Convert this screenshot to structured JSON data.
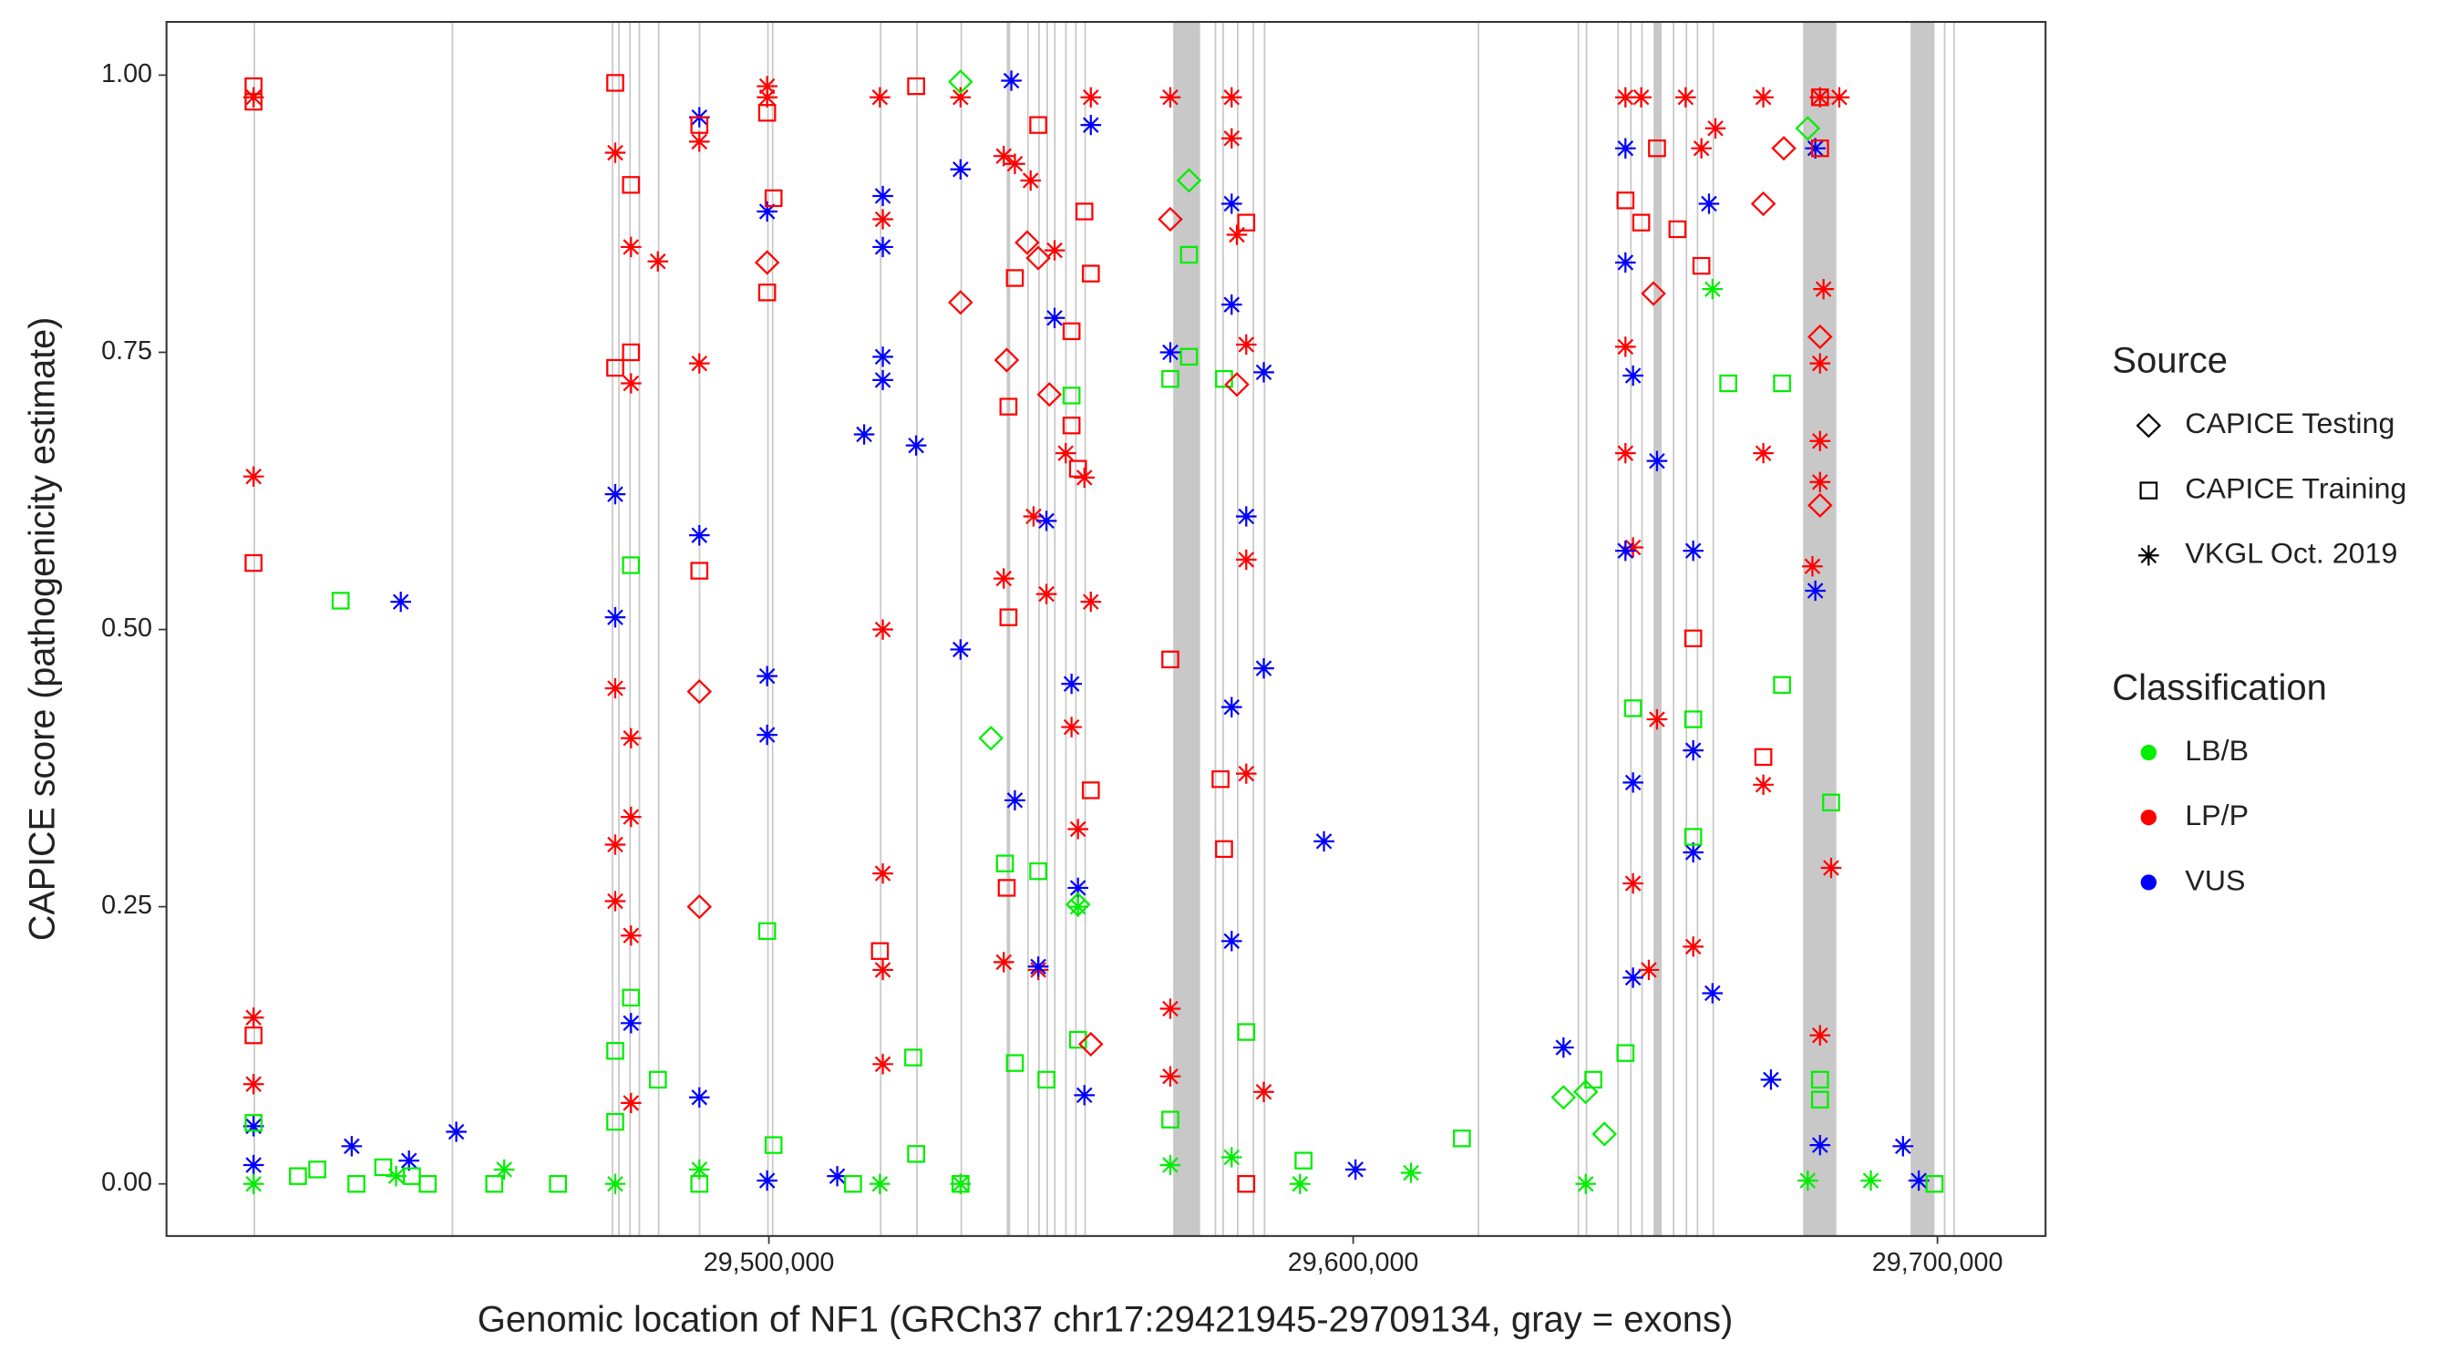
{
  "chart_data": {
    "type": "scatter",
    "xlabel": "Genomic location of NF1 (GRCh37 chr17:29421945-29709134, gray = exons)",
    "ylabel": "CAPICE score (pathogenicity estimate)",
    "xlim": [
      29396900,
      29718500
    ],
    "ylim": [
      -0.047,
      1.048
    ],
    "xticks": [
      {
        "value": 29500000,
        "label": "29,500,000"
      },
      {
        "value": 29600000,
        "label": "29,600,000"
      },
      {
        "value": 29700000,
        "label": "29,700,000"
      }
    ],
    "yticks": [
      {
        "value": 0,
        "label": "0.00"
      },
      {
        "value": 0.25,
        "label": "0.25"
      },
      {
        "value": 0.5,
        "label": "0.50"
      },
      {
        "value": 0.75,
        "label": "0.75"
      },
      {
        "value": 1,
        "label": "1.00"
      }
    ],
    "exon_color": "#c8c8c8",
    "exons": [
      [
        29411800,
        29412000
      ],
      [
        29445700,
        29445900
      ],
      [
        29473100,
        29473300
      ],
      [
        29474200,
        29474400
      ],
      [
        29476100,
        29476300
      ],
      [
        29477700,
        29477900
      ],
      [
        29481000,
        29481200
      ],
      [
        29488000,
        29488200
      ],
      [
        29499700,
        29499900
      ],
      [
        29500500,
        29500700
      ],
      [
        29519000,
        29519200
      ],
      [
        29525200,
        29525400
      ],
      [
        29532800,
        29533000
      ],
      [
        29540700,
        29541300
      ],
      [
        29544200,
        29544400
      ],
      [
        29546100,
        29546300
      ],
      [
        29547500,
        29547700
      ],
      [
        29548800,
        29549000
      ],
      [
        29550700,
        29550900
      ],
      [
        29552400,
        29552600
      ],
      [
        29554000,
        29554200
      ],
      [
        29569200,
        29573800
      ],
      [
        29576300,
        29576500
      ],
      [
        29577600,
        29577800
      ],
      [
        29580100,
        29580300
      ],
      [
        29582800,
        29583000
      ],
      [
        29584700,
        29584900
      ],
      [
        29621300,
        29621500
      ],
      [
        29638400,
        29638600
      ],
      [
        29639800,
        29640000
      ],
      [
        29645200,
        29645400
      ],
      [
        29647400,
        29647600
      ],
      [
        29649300,
        29649500
      ],
      [
        29651400,
        29652800
      ],
      [
        29654700,
        29654900
      ],
      [
        29656900,
        29657100
      ],
      [
        29658800,
        29659000
      ],
      [
        29661500,
        29661700
      ],
      [
        29677000,
        29682700
      ],
      [
        29695400,
        29699500
      ],
      [
        29701100,
        29701300
      ],
      [
        29702700,
        29702900
      ]
    ],
    "source_title": "Source",
    "sources": [
      {
        "name": "CAPICE Testing",
        "shape": "diamond"
      },
      {
        "name": "CAPICE Training",
        "shape": "square"
      },
      {
        "name": "VKGL Oct. 2019",
        "shape": "asterisk"
      }
    ],
    "classification_title": "Classification",
    "classifications": [
      {
        "name": "LB/B",
        "color": "#00ee00"
      },
      {
        "name": "LP/P",
        "color": "#ff0000"
      },
      {
        "name": "VUS",
        "color": "#0000ff"
      }
    ],
    "series": [
      {
        "source": "VKGL Oct. 2019",
        "classification": "LP/P",
        "x": [
          29411800,
          29411800,
          29411800,
          29411800,
          29473700,
          29473700,
          29473700,
          29473700,
          29476400,
          29476400,
          29476400,
          29476400,
          29476400,
          29476400,
          29481000,
          29488100,
          29488100,
          29499700,
          29499700,
          29519000,
          29519500,
          29519500,
          29519500,
          29519500,
          29519500,
          29532800,
          29540200,
          29540200,
          29540200,
          29542100,
          29544800,
          29545300,
          29546100,
          29547500,
          29548900,
          29550800,
          29551800,
          29552900,
          29554000,
          29555100,
          29555100,
          29568700,
          29568700,
          29568700,
          29579200,
          29579200,
          29580100,
          29581700,
          29581700,
          29581700,
          29584700,
          29646600,
          29646600,
          29646600,
          29647900,
          29647900,
          29649300,
          29650600,
          29652000,
          29656900,
          29658200,
          29659600,
          29662000,
          29670200,
          29670200,
          29670200,
          29678600,
          29679900,
          29679900,
          29679900,
          29679900,
          29679900,
          29680500,
          29681800,
          29683200
        ],
        "values": [
          0.98,
          0.638,
          0.15,
          0.09,
          0.93,
          0.447,
          0.306,
          0.255,
          0.845,
          0.722,
          0.402,
          0.331,
          0.224,
          0.073,
          0.832,
          0.94,
          0.74,
          0.99,
          0.98,
          0.98,
          0.87,
          0.5,
          0.28,
          0.193,
          0.108,
          0.98,
          0.927,
          0.546,
          0.2,
          0.92,
          0.905,
          0.602,
          0.193,
          0.532,
          0.842,
          0.659,
          0.412,
          0.32,
          0.637,
          0.525,
          0.98,
          0.98,
          0.158,
          0.097,
          0.98,
          0.943,
          0.856,
          0.757,
          0.563,
          0.37,
          0.083,
          0.98,
          0.755,
          0.659,
          0.574,
          0.271,
          0.98,
          0.193,
          0.419,
          0.98,
          0.214,
          0.934,
          0.952,
          0.98,
          0.659,
          0.36,
          0.557,
          0.98,
          0.74,
          0.67,
          0.633,
          0.134,
          0.807,
          0.285,
          0.98
        ]
      },
      {
        "source": "VKGL Oct. 2019",
        "classification": "VUS",
        "x": [
          29411800,
          29411800,
          29428600,
          29437000,
          29438400,
          29446500,
          29473700,
          29473700,
          29476400,
          29488100,
          29488100,
          29488100,
          29499700,
          29499700,
          29499700,
          29499700,
          29511700,
          29516300,
          29519500,
          29519500,
          29519500,
          29519500,
          29525200,
          29532800,
          29532800,
          29541500,
          29542100,
          29546100,
          29547500,
          29548900,
          29551800,
          29552900,
          29554000,
          29555100,
          29568700,
          29579200,
          29579200,
          29579200,
          29579200,
          29581700,
          29584700,
          29584700,
          29595000,
          29600400,
          29636000,
          29646600,
          29646600,
          29646600,
          29647900,
          29647900,
          29647900,
          29652000,
          29658200,
          29658200,
          29658200,
          29660900,
          29661500,
          29671500,
          29679100,
          29679100,
          29679900,
          29694100,
          29696800
        ],
        "values": [
          0.052,
          0.017,
          0.034,
          0.525,
          0.021,
          0.047,
          0.622,
          0.511,
          0.145,
          0.962,
          0.585,
          0.078,
          0.877,
          0.458,
          0.405,
          0.003,
          0.007,
          0.676,
          0.891,
          0.746,
          0.725,
          0.845,
          0.666,
          0.915,
          0.482,
          0.995,
          0.346,
          0.196,
          0.598,
          0.781,
          0.451,
          0.267,
          0.08,
          0.955,
          0.75,
          0.884,
          0.793,
          0.43,
          0.219,
          0.602,
          0.732,
          0.465,
          0.309,
          0.013,
          0.123,
          0.934,
          0.831,
          0.571,
          0.729,
          0.362,
          0.186,
          0.652,
          0.571,
          0.391,
          0.299,
          0.884,
          0.172,
          0.094,
          0.535,
          0.934,
          0.035,
          0.034,
          0.003
        ]
      },
      {
        "source": "VKGL Oct. 2019",
        "classification": "LB/B",
        "x": [
          29411800,
          29436200,
          29454700,
          29473700,
          29488100,
          29519000,
          29532800,
          29552900,
          29568700,
          29579200,
          29590900,
          29609900,
          29639800,
          29661500,
          29677800,
          29688600
        ],
        "values": [
          0,
          0.007,
          0.013,
          0,
          0.013,
          0,
          0,
          0.25,
          0.017,
          0.024,
          0,
          0.01,
          0,
          0.807,
          0.003,
          0.003
        ]
      },
      {
        "source": "CAPICE Training",
        "classification": "LP/P",
        "x": [
          29411800,
          29411800,
          29411800,
          29411800,
          29473700,
          29473700,
          29476400,
          29476400,
          29488100,
          29488100,
          29499700,
          29499700,
          29500800,
          29519000,
          29525200,
          29540700,
          29541000,
          29541000,
          29542100,
          29546100,
          29551800,
          29551800,
          29552900,
          29554000,
          29555100,
          29555100,
          29568700,
          29577300,
          29577900,
          29581700,
          29581700,
          29646600,
          29649300,
          29652000,
          29655500,
          29658200,
          29659600,
          29670200,
          29679900,
          29679900
        ],
        "values": [
          0.99,
          0.976,
          0.56,
          0.134,
          0.993,
          0.736,
          0.75,
          0.901,
          0.553,
          0.955,
          0.966,
          0.804,
          0.889,
          0.21,
          0.99,
          0.267,
          0.511,
          0.701,
          0.817,
          0.955,
          0.769,
          0.684,
          0.645,
          0.877,
          0.821,
          0.355,
          0.473,
          0.365,
          0.302,
          0.867,
          0,
          0.887,
          0.867,
          0.934,
          0.861,
          0.492,
          0.828,
          0.385,
          0.934,
          0.98
        ]
      },
      {
        "source": "CAPICE Training",
        "classification": "LB/B",
        "x": [
          29411800,
          29419400,
          29422700,
          29426700,
          29429400,
          29434000,
          29438900,
          29441600,
          29453000,
          29463900,
          29473700,
          29473700,
          29476400,
          29476400,
          29481000,
          29488100,
          29499700,
          29500800,
          29514400,
          29524700,
          29525200,
          29532800,
          29540400,
          29542100,
          29546100,
          29547500,
          29551800,
          29552900,
          29568700,
          29568700,
          29571900,
          29571900,
          29577900,
          29581700,
          29591500,
          29618600,
          29641100,
          29646600,
          29647900,
          29658200,
          29658200,
          29664200,
          29673400,
          29673400,
          29679900,
          29679900,
          29681800,
          29699500
        ],
        "values": [
          0.055,
          0.007,
          0.013,
          0.526,
          0,
          0.015,
          0.007,
          0,
          0,
          0,
          0.056,
          0.12,
          0.558,
          0.168,
          0.094,
          0,
          0.228,
          0.035,
          0,
          0.114,
          0.027,
          0,
          0.289,
          0.109,
          0.282,
          0.094,
          0.711,
          0.13,
          0.726,
          0.058,
          0.746,
          0.838,
          0.726,
          0.137,
          0.021,
          0.041,
          0.094,
          0.118,
          0.429,
          0.419,
          0.313,
          0.722,
          0.722,
          0.45,
          0.094,
          0.076,
          0.344,
          0
        ]
      },
      {
        "source": "CAPICE Testing",
        "classification": "LP/P",
        "x": [
          29488100,
          29488100,
          29499700,
          29532800,
          29540700,
          29544200,
          29546100,
          29548000,
          29555100,
          29568700,
          29580100,
          29651400,
          29670200,
          29673700,
          29679900,
          29679900
        ],
        "values": [
          0.444,
          0.25,
          0.831,
          0.795,
          0.743,
          0.849,
          0.835,
          0.712,
          0.126,
          0.87,
          0.721,
          0.803,
          0.884,
          0.934,
          0.764,
          0.612
        ]
      },
      {
        "source": "CAPICE Testing",
        "classification": "LB/B",
        "x": [
          29532800,
          29538000,
          29552900,
          29571900,
          29636000,
          29639800,
          29643000,
          29677800
        ],
        "values": [
          0.994,
          0.402,
          0.252,
          0.905,
          0.078,
          0.083,
          0.045,
          0.952
        ]
      }
    ]
  }
}
